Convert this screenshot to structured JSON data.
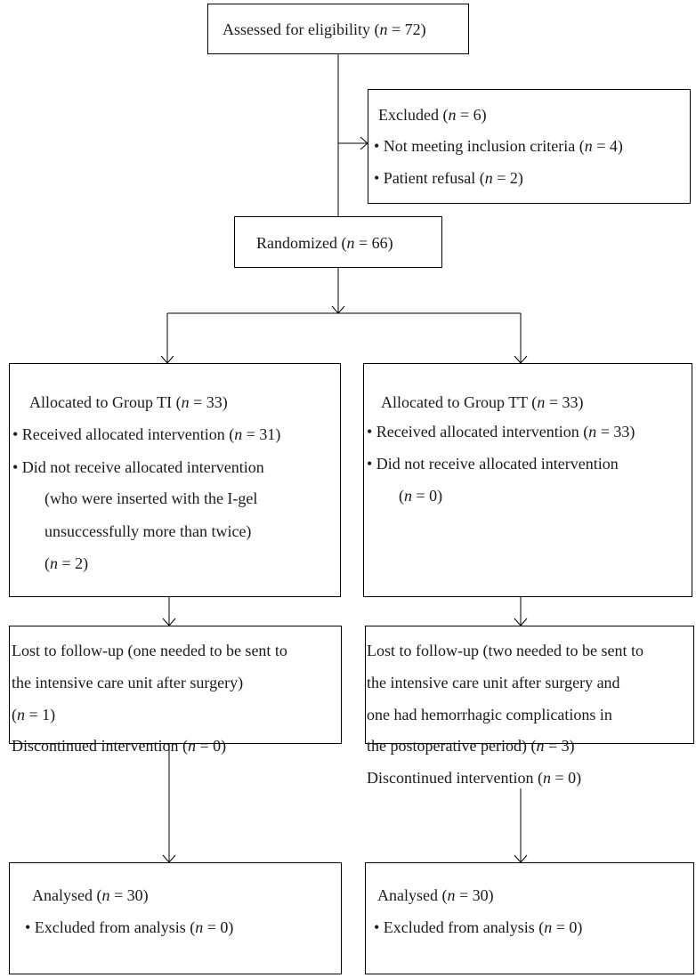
{
  "eligibility": {
    "text": "Assessed for eligibility (<i>n</i> = 72)"
  },
  "excluded": {
    "title": "Excluded (<i>n</i> = 6)",
    "items": [
      "• Not meeting inclusion criteria (<i>n</i> = 4)",
      "• Patient refusal (<i>n</i> = 2)"
    ]
  },
  "randomized": {
    "text": "Randomized (<i>n</i> = 66)"
  },
  "allocation_ti": {
    "title": "Allocated to Group TI (<i>n</i> = 33)",
    "lines": [
      "• Received allocated intervention (<i>n</i> = 31)",
      "• Did not receive allocated intervention",
      "(who were inserted with the I-gel",
      "unsuccessfully more than twice)",
      "(<i>n</i> = 2)"
    ]
  },
  "allocation_tt": {
    "title": "Allocated to Group TT (<i>n</i> = 33)",
    "lines": [
      "• Received allocated intervention (<i>n</i> = 33)",
      "• Did not receive allocated intervention",
      "(<i>n</i> = 0)"
    ]
  },
  "followup_ti": {
    "lines": [
      "Lost to follow-up (one needed to be sent to",
      "the intensive care unit after surgery)",
      "(<i>n</i> = 1)",
      "Discontinued intervention (<i>n</i> = 0)"
    ]
  },
  "followup_tt": {
    "lines": [
      "Lost to follow-up (two needed to be sent to",
      "the intensive care unit after surgery and",
      "one had hemorrhagic complications in",
      "the postoperative period) (<i>n</i> = 3)",
      "Discontinued intervention (<i>n</i> = 0)"
    ]
  },
  "analysis_ti": {
    "title": "Analysed (<i>n</i> = 30)",
    "lines": [
      "• Excluded from analysis (<i>n</i> = 0)"
    ]
  },
  "analysis_tt": {
    "title": "Analysed (<i>n</i> = 30)",
    "lines": [
      "• Excluded from analysis (<i>n</i> = 0)"
    ]
  }
}
